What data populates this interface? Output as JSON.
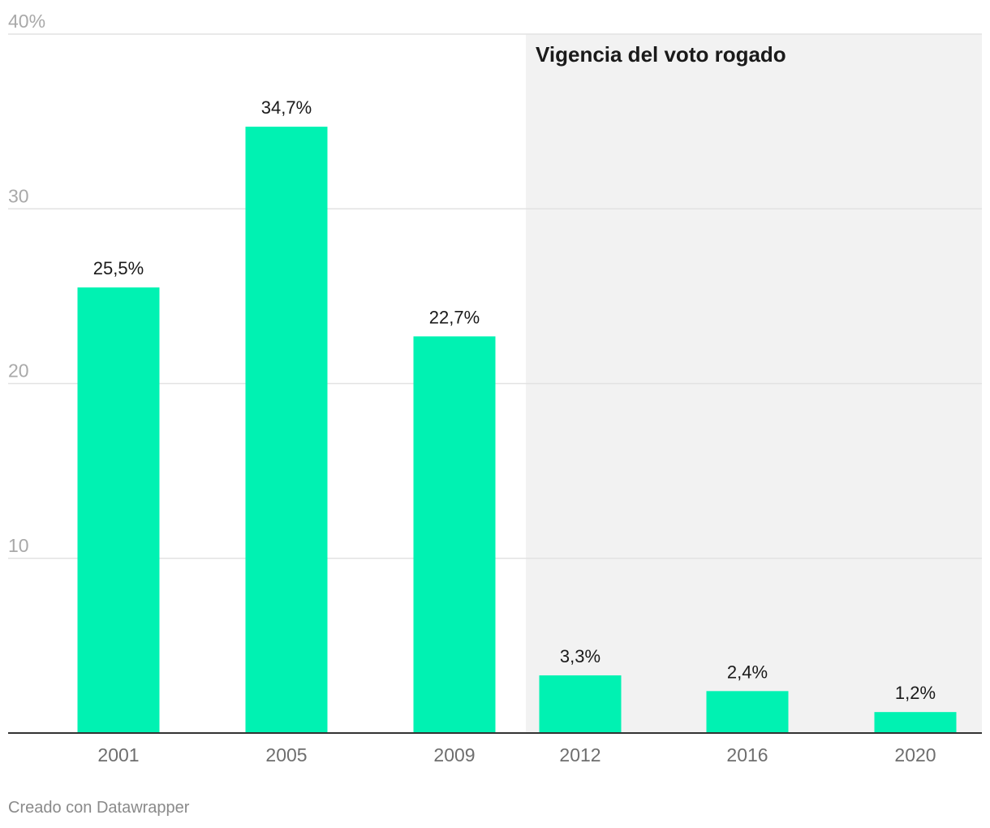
{
  "chart_data": {
    "type": "bar",
    "categories": [
      "2001",
      "2005",
      "2009",
      "2012",
      "2016",
      "2020"
    ],
    "values": [
      25.5,
      34.7,
      22.7,
      3.3,
      2.4,
      1.2
    ],
    "value_labels": [
      "25,5%",
      "34,7%",
      "22,7%",
      "3,3%",
      "2,4%",
      "1,2%"
    ],
    "y_ticks": [
      0,
      10,
      20,
      30,
      40
    ],
    "y_tick_labels": [
      "",
      "10",
      "20",
      "30",
      "40%"
    ],
    "ylim": [
      0,
      40
    ],
    "grid": true,
    "highlight_region": {
      "from_category": "2012",
      "to_category": "2020",
      "label": "Vigencia del voto rogado"
    },
    "colors": {
      "bar": "#00f2b2",
      "highlight_background": "#f2f2f2",
      "gridline": "#e2e2e2",
      "baseline": "#333333"
    }
  },
  "footer": {
    "credit": "Creado con Datawrapper"
  }
}
